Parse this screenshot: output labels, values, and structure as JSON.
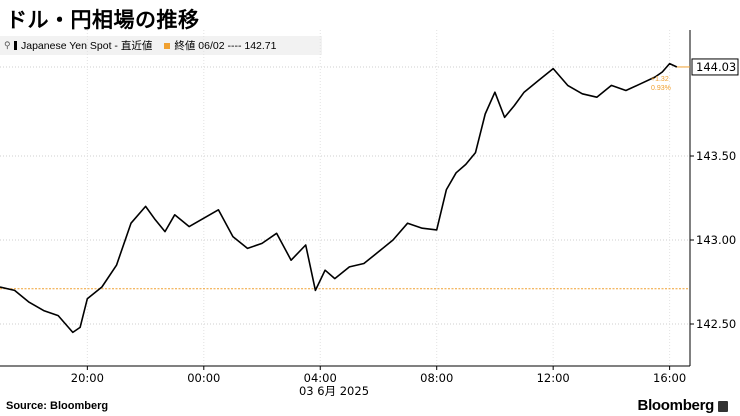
{
  "title": "ドル・円相場の推移",
  "legend": {
    "series_label": "Japanese Yen Spot - 直近値",
    "ref_label": "終値 06/02 ---- 142.71"
  },
  "source": "Source: Bloomberg",
  "brand": "Bloomberg",
  "colors": {
    "series": "#000000",
    "reference": "#f0a030",
    "last_box": "#ffffff"
  },
  "chart_data": {
    "type": "line",
    "title": "ドル・円相場の推移",
    "xlabel": "03 6月 2025",
    "ylabel": "",
    "x_tick_labels": [
      "20:00",
      "00:00",
      "04:00",
      "08:00",
      "12:00",
      "16:00"
    ],
    "y_tick_labels": [
      "142.50",
      "143.00",
      "143.50",
      "144.03"
    ],
    "y_ticks": [
      142.5,
      143.0,
      143.5
    ],
    "ylim": [
      142.25,
      144.25
    ],
    "grid": "horizontal dotted",
    "reference_line": {
      "label": "終値 06/02",
      "value": 142.71
    },
    "last_value": 144.03,
    "change_labels": [
      "+1.32",
      "0.93%"
    ],
    "series": [
      {
        "name": "Japanese Yen Spot",
        "x": [
          "02 17:00",
          "02 17:30",
          "02 18:00",
          "02 18:30",
          "02 19:00",
          "02 19:30",
          "02 19:45",
          "02 20:00",
          "02 20:30",
          "02 21:00",
          "02 21:30",
          "02 22:00",
          "02 22:20",
          "02 22:40",
          "02 23:00",
          "02 23:30",
          "03 00:00",
          "03 00:30",
          "03 01:00",
          "03 01:30",
          "03 02:00",
          "03 02:30",
          "03 03:00",
          "03 03:30",
          "03 03:50",
          "03 04:10",
          "03 04:30",
          "03 05:00",
          "03 05:30",
          "03 06:00",
          "03 06:30",
          "03 07:00",
          "03 07:30",
          "03 08:00",
          "03 08:20",
          "03 08:40",
          "03 09:00",
          "03 09:20",
          "03 09:40",
          "03 10:00",
          "03 10:20",
          "03 10:40",
          "03 11:00",
          "03 11:30",
          "03 12:00",
          "03 12:30",
          "03 13:00",
          "03 13:30",
          "03 14:00",
          "03 14:30",
          "03 15:00",
          "03 15:30",
          "03 15:45",
          "03 16:00",
          "03 16:15"
        ],
        "values": [
          142.72,
          142.7,
          142.63,
          142.58,
          142.55,
          142.45,
          142.48,
          142.65,
          142.72,
          142.85,
          143.1,
          143.2,
          143.12,
          143.05,
          143.15,
          143.08,
          143.13,
          143.18,
          143.02,
          142.95,
          142.98,
          143.04,
          142.88,
          142.97,
          142.7,
          142.82,
          142.77,
          142.84,
          142.86,
          142.93,
          143.0,
          143.1,
          143.07,
          143.06,
          143.3,
          143.4,
          143.45,
          143.52,
          143.75,
          143.88,
          143.73,
          143.8,
          143.88,
          143.95,
          144.02,
          143.92,
          143.87,
          143.85,
          143.92,
          143.89,
          143.93,
          143.97,
          144.0,
          144.05,
          144.03
        ]
      }
    ]
  }
}
